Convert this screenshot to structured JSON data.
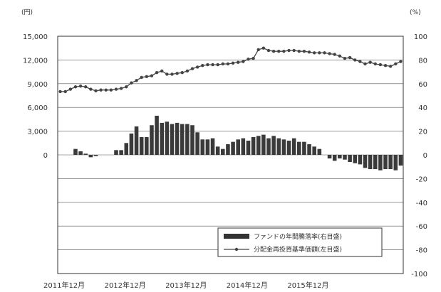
{
  "chart_data": {
    "type": "bar+line",
    "left_unit": "(円)",
    "right_unit": "(%)",
    "left_ticks": [
      "15,000",
      "12,000",
      "9,000",
      "6,000",
      "3,000",
      "0"
    ],
    "right_ticks": [
      "100",
      "80",
      "60",
      "40",
      "20",
      "0",
      "-20",
      "-40",
      "-60",
      "-80",
      "-100"
    ],
    "ylim_left": [
      0,
      15000
    ],
    "ylim_right": [
      -100,
      100
    ],
    "x_labels": [
      "2011年12月",
      "2012年12月",
      "2013年12月",
      "2014年12月",
      "2015年12月"
    ],
    "x_label_month_index": [
      0,
      12,
      24,
      36,
      48
    ],
    "grid": true,
    "legend": "bottom-right",
    "series": [
      {
        "name": "ファンドの年間騰落率(右目盛)",
        "type": "bar",
        "axis": "right",
        "values": [
          0,
          0,
          0,
          5,
          3,
          1,
          -2,
          -1,
          0,
          0,
          0,
          4,
          4,
          10,
          18,
          24,
          15,
          15,
          25,
          33,
          27,
          28,
          26,
          27,
          26,
          26,
          25,
          19,
          13,
          13,
          14,
          7,
          5,
          9,
          11,
          13,
          14,
          12,
          15,
          16,
          17,
          14,
          16,
          14,
          13,
          12,
          14,
          11,
          11,
          9,
          7,
          5,
          0,
          -3,
          -5,
          -3,
          -4,
          -6,
          -7,
          -8,
          -11,
          -12,
          -12,
          -13,
          -12,
          -12,
          -13,
          -9
        ]
      },
      {
        "name": "分配金再投資基準価額(左目盛)",
        "type": "line",
        "axis": "left",
        "values": [
          8000,
          8000,
          8300,
          8600,
          8700,
          8600,
          8300,
          8100,
          8200,
          8200,
          8200,
          8300,
          8400,
          8600,
          9100,
          9400,
          9800,
          9900,
          10000,
          10400,
          10600,
          10200,
          10200,
          10300,
          10400,
          10600,
          10900,
          11100,
          11300,
          11400,
          11400,
          11400,
          11500,
          11500,
          11600,
          11700,
          11800,
          12100,
          12200,
          13300,
          13500,
          13200,
          13100,
          13100,
          13100,
          13200,
          13200,
          13100,
          13100,
          13000,
          12900,
          12900,
          12900,
          12800,
          12700,
          12500,
          12200,
          12300,
          12000,
          11800,
          11500,
          11700,
          11500,
          11400,
          11300,
          11200,
          11500,
          11800
        ]
      }
    ]
  }
}
